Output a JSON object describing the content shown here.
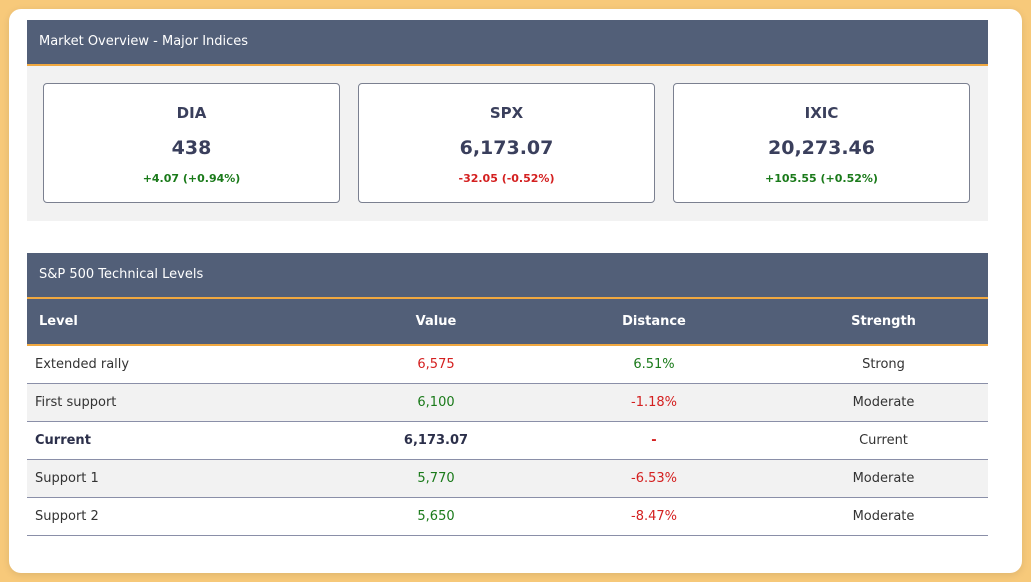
{
  "overview": {
    "title": "Market Overview - Major Indices",
    "indices": [
      {
        "symbol": "DIA",
        "value": "438",
        "change": "+4.07 (+0.94%)",
        "direction": "up"
      },
      {
        "symbol": "SPX",
        "value": "6,173.07",
        "change": "-32.05 (-0.52%)",
        "direction": "down"
      },
      {
        "symbol": "IXIC",
        "value": "20,273.46",
        "change": "+105.55 (+0.52%)",
        "direction": "up"
      }
    ]
  },
  "technical": {
    "title": "S&P 500 Technical Levels",
    "columns": [
      "Level",
      "Value",
      "Distance",
      "Strength"
    ],
    "rows": [
      {
        "level": "Extended rally",
        "value": "6,575",
        "value_color": "red",
        "distance": "6.51%",
        "distance_color": "green",
        "strength": "Strong",
        "bold": false
      },
      {
        "level": "First support",
        "value": "6,100",
        "value_color": "green",
        "distance": "-1.18%",
        "distance_color": "red",
        "strength": "Moderate",
        "bold": false
      },
      {
        "level": "Current",
        "value": "6,173.07",
        "value_color": "dark",
        "distance": "-",
        "distance_color": "red",
        "strength": "Current",
        "bold": true
      },
      {
        "level": "Support 1",
        "value": "5,770",
        "value_color": "green",
        "distance": "-6.53%",
        "distance_color": "red",
        "strength": "Moderate",
        "bold": false
      },
      {
        "level": "Support 2",
        "value": "5,650",
        "value_color": "green",
        "distance": "-8.47%",
        "distance_color": "red",
        "strength": "Moderate",
        "bold": false
      }
    ]
  },
  "colors": {
    "header_bg": "#525f78",
    "header_accent": "#f0a840",
    "up": "#1a7a1a",
    "down": "#d42020",
    "dark": "#2b2f4a",
    "page_bg": "#f7c97a"
  }
}
